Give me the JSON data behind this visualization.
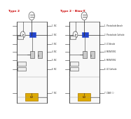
{
  "panel_left_title": "Type 2",
  "panel_right_title": "Type 2 - Bias-T",
  "title_color": "#cc0000",
  "bg_color": "#ffffff",
  "box_bg": "#f8f8f8",
  "border_color": "#555555",
  "line_color": "#333333",
  "pin_labels_right": [
    "1. Photodiode Anode",
    "2. Photodiode Cathode",
    "3. LD Anode",
    "4. MONITOR1",
    "5. MONITOR2",
    "6. LD Cathode",
    "7. CASE (-)"
  ],
  "pin_labels_left": [
    "1. NC",
    "2. NC",
    "3. NC",
    "4. NC",
    "5. NC",
    "6. NC",
    "7. NC"
  ],
  "laser_color": "#2244cc",
  "yellow_color": "#ddaa00",
  "yellow_edge": "#aa7700",
  "comp_edge": "#444444",
  "comp_fill": "#cccccc",
  "gray_line": "#999999"
}
